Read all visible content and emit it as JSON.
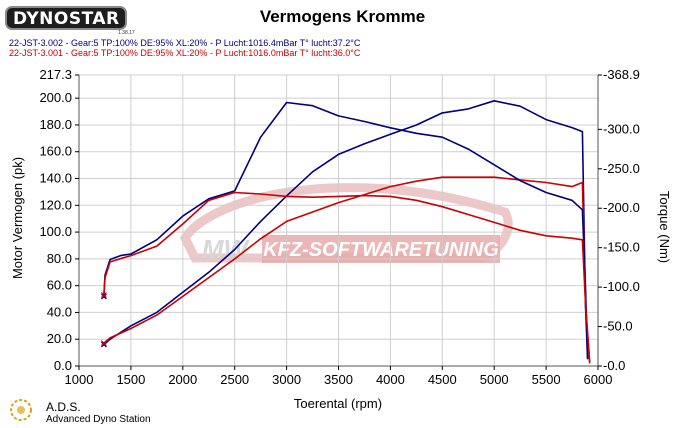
{
  "header": {
    "brand": "DYNOSTAR",
    "brand_sub": "1.38.17",
    "title": "Vermogens Kromme"
  },
  "runs": [
    {
      "label": "22-JST-3.002 - Gear:5 TP:100% DE:95% XL:20%   - P Lucht:1016.4mBar T° lucht:37.2°C",
      "color": "#000080"
    },
    {
      "label": "22-JST-3.001 - Gear:5 TP:100% DE:95% XL:20%   - P Lucht:1016.0mBar T° lucht:36.0°C",
      "color": "#cc0000"
    }
  ],
  "watermark": {
    "text": "KFZ-SOFTWARETUNING",
    "prefix": "MW"
  },
  "footer": {
    "short": "A.D.S.",
    "full": "Advanced Dyno Station"
  },
  "chart_data": {
    "type": "line",
    "title": "Vermogens Kromme",
    "xlabel": "Toerental (rpm)",
    "ylabel": "Motor Vermogen (pk)",
    "y2label": "Torque (Nm)",
    "xlim": [
      1000,
      6000
    ],
    "ylim": [
      0,
      217.3
    ],
    "y2lim": [
      0,
      368.9
    ],
    "x_ticks": [
      "1000",
      "1500",
      "2000",
      "2500",
      "3000",
      "3500",
      "4000",
      "4500",
      "5000",
      "5500",
      "6000"
    ],
    "y_ticks": [
      "0.0",
      "20.0",
      "40.0",
      "60.0",
      "80.0",
      "100.0",
      "120.0",
      "140.0",
      "160.0",
      "180.0",
      "200.0",
      "217.3"
    ],
    "y2_ticks": [
      "-0.0",
      "-50.0",
      "-100.0",
      "-150.0",
      "-200.0",
      "-250.0",
      "-300.0",
      "-368.9"
    ],
    "grid": true,
    "series": [
      {
        "name": "22-JST-3.002 vermogen",
        "axis": "left",
        "color": "#000080",
        "x": [
          1240,
          1300,
          1500,
          1750,
          2000,
          2250,
          2500,
          2750,
          3000,
          3250,
          3500,
          3750,
          4000,
          4250,
          4500,
          4750,
          5000,
          5250,
          5500,
          5750,
          5850,
          5880,
          5900
        ],
        "y": [
          16,
          20,
          30,
          40,
          55,
          70,
          87,
          108,
          127,
          145,
          158,
          166,
          173,
          180,
          189,
          192,
          198,
          194,
          184,
          178,
          175,
          45,
          5
        ]
      },
      {
        "name": "22-JST-3.001 vermogen",
        "axis": "left",
        "color": "#cc0000",
        "x": [
          1240,
          1300,
          1500,
          1750,
          2000,
          2250,
          2500,
          2750,
          3000,
          3250,
          3500,
          3750,
          4000,
          4250,
          4500,
          4750,
          5000,
          5250,
          5500,
          5750,
          5850,
          5880,
          5920
        ],
        "y": [
          17,
          21,
          28,
          38,
          52,
          66,
          80,
          95,
          108,
          115,
          122,
          128,
          134,
          138,
          141,
          141,
          141,
          139,
          137,
          134,
          137,
          45,
          2
        ]
      },
      {
        "name": "22-JST-3.002 torque",
        "axis": "right",
        "color": "#000080",
        "x": [
          1240,
          1250,
          1300,
          1400,
          1500,
          1750,
          2000,
          2250,
          2500,
          2750,
          3000,
          3250,
          3500,
          3750,
          4000,
          4250,
          4500,
          4750,
          5000,
          5250,
          5500,
          5750,
          5850,
          5880,
          5900
        ],
        "y": [
          88,
          115,
          135,
          140,
          142,
          160,
          190,
          212,
          222,
          290,
          334,
          330,
          317,
          310,
          302,
          295,
          290,
          275,
          255,
          235,
          220,
          210,
          198,
          100,
          10
        ]
      },
      {
        "name": "22-JST-3.001 torque",
        "axis": "right",
        "color": "#cc0000",
        "x": [
          1240,
          1250,
          1300,
          1400,
          1500,
          1750,
          2000,
          2250,
          2500,
          2750,
          3000,
          3250,
          3500,
          3750,
          4000,
          4250,
          4500,
          4750,
          5000,
          5250,
          5500,
          5750,
          5850,
          5880,
          5920
        ],
        "y": [
          90,
          112,
          132,
          136,
          140,
          152,
          180,
          210,
          220,
          218,
          215,
          214,
          215,
          216,
          215,
          210,
          202,
          192,
          182,
          172,
          165,
          162,
          160,
          80,
          5
        ]
      }
    ]
  }
}
